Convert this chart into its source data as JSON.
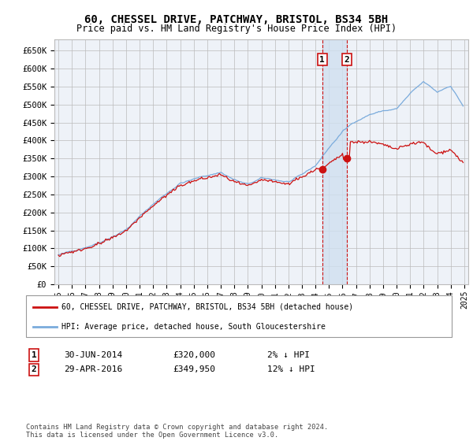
{
  "title": "60, CHESSEL DRIVE, PATCHWAY, BRISTOL, BS34 5BH",
  "subtitle": "Price paid vs. HM Land Registry's House Price Index (HPI)",
  "legend_line1": "60, CHESSEL DRIVE, PATCHWAY, BRISTOL, BS34 5BH (detached house)",
  "legend_line2": "HPI: Average price, detached house, South Gloucestershire",
  "footer": "Contains HM Land Registry data © Crown copyright and database right 2024.\nThis data is licensed under the Open Government Licence v3.0.",
  "sale1_label": "1",
  "sale1_date": "30-JUN-2014",
  "sale1_price": "£320,000",
  "sale1_hpi": "2% ↓ HPI",
  "sale1_year": 2014.5,
  "sale1_value": 320000,
  "sale2_label": "2",
  "sale2_date": "29-APR-2016",
  "sale2_price": "£349,950",
  "sale2_hpi": "12% ↓ HPI",
  "sale2_year": 2016.33,
  "sale2_value": 349950,
  "ylim": [
    0,
    680000
  ],
  "xlim": [
    1994.7,
    2025.3
  ],
  "yticks": [
    0,
    50000,
    100000,
    150000,
    200000,
    250000,
    300000,
    350000,
    400000,
    450000,
    500000,
    550000,
    600000,
    650000
  ],
  "ytick_labels": [
    "£0",
    "£50K",
    "£100K",
    "£150K",
    "£200K",
    "£250K",
    "£300K",
    "£350K",
    "£400K",
    "£450K",
    "£500K",
    "£550K",
    "£600K",
    "£650K"
  ],
  "hpi_color": "#7aabdc",
  "price_color": "#cc1111",
  "bg_color": "#eef2f8",
  "shaded_region_color": "#d0e0f0",
  "grid_color": "#bbbbbb"
}
